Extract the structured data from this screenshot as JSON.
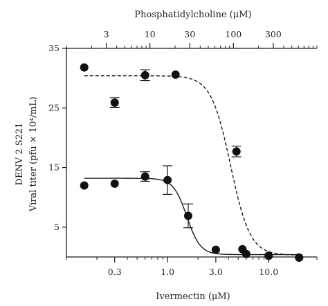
{
  "chart_data": {
    "type": "scatter",
    "x_scale": "log",
    "bottom_axis": {
      "label": "Ivermectin (μM)",
      "range": [
        0.1,
        30
      ],
      "ticks": [
        0.3,
        1.0,
        3.0,
        10.0
      ],
      "tick_labels": [
        "0.3",
        "1.0",
        "3.0",
        "10.0"
      ]
    },
    "top_axis": {
      "label": "Phosphatidylcholine (μM)",
      "range": [
        1,
        1000
      ],
      "ticks": [
        3,
        10,
        30,
        100,
        300
      ],
      "tick_labels": [
        "3",
        "10",
        "30",
        "100",
        "300"
      ]
    },
    "y_axis": {
      "label_line1": "DENV 2 S221",
      "label_line2": "Viral titer (pfu × 10⁴/mL)",
      "range": [
        0,
        35
      ],
      "ticks": [
        5,
        15,
        25,
        35
      ],
      "tick_labels": [
        "5",
        "15",
        "25",
        "35"
      ]
    },
    "grid": false,
    "legend": "none",
    "series": [
      {
        "style": "dashed",
        "color": "#1a1a1a",
        "points": [
          {
            "x": 0.15,
            "y": 31.8,
            "err": 0
          },
          {
            "x": 0.3,
            "y": 25.9,
            "err": 0.8
          },
          {
            "x": 0.6,
            "y": 30.5,
            "err": 0.9
          },
          {
            "x": 1.2,
            "y": 30.6,
            "err": 0
          },
          {
            "x": 4.8,
            "y": 17.7,
            "err": 0.9
          },
          {
            "x": 6.0,
            "y": 0.5,
            "err": 0
          },
          {
            "x": 10.0,
            "y": 0.2,
            "err": 0
          },
          {
            "x": 20.0,
            "y": -0.1,
            "err": 0
          }
        ],
        "fit": {
          "top": 30.4,
          "bottom": 0.3,
          "ec50": 4.2,
          "hill": 4.5
        }
      },
      {
        "style": "solid",
        "color": "#1a1a1a",
        "points": [
          {
            "x": 0.15,
            "y": 12.0,
            "err": 0
          },
          {
            "x": 0.3,
            "y": 12.3,
            "err": 0
          },
          {
            "x": 0.6,
            "y": 13.5,
            "err": 0.8
          },
          {
            "x": 1.0,
            "y": 12.9,
            "err": 2.4
          },
          {
            "x": 1.6,
            "y": 6.9,
            "err": 2.0
          },
          {
            "x": 3.0,
            "y": 1.2,
            "err": 0
          },
          {
            "x": 5.5,
            "y": 1.3,
            "err": 0
          },
          {
            "x": 10.0,
            "y": 0.2,
            "err": 0
          },
          {
            "x": 20.0,
            "y": -0.1,
            "err": 0
          }
        ],
        "fit": {
          "top": 13.2,
          "bottom": 0.4,
          "ec50": 1.55,
          "hill": 6.5
        }
      }
    ]
  }
}
